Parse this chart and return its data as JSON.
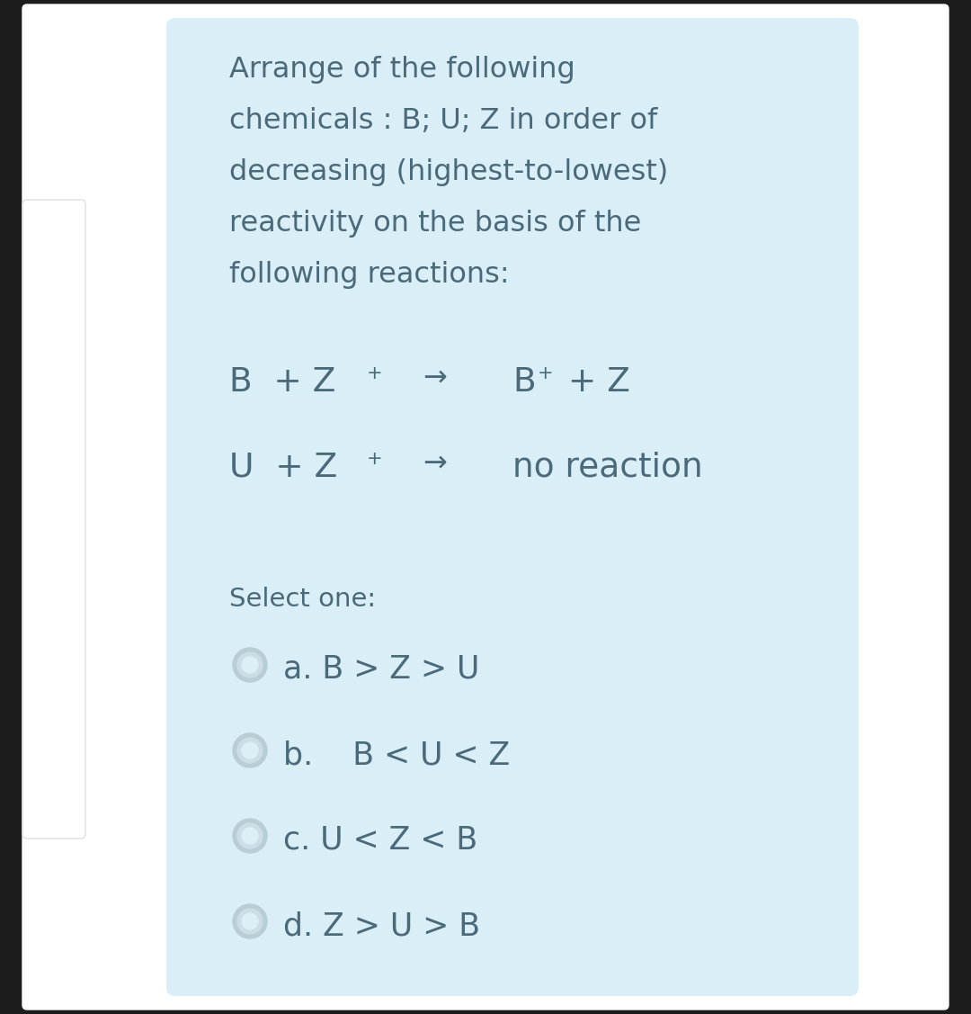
{
  "bg_color": "#ffffff",
  "card_color": "#daeef8",
  "outer_bg": "#1c1c1c",
  "text_color": "#4a6a7a",
  "title_lines": [
    "Arrange of the following",
    "chemicals : B; U; Z in order of",
    "decreasing (highest-to-lowest)",
    "reactivity on the basis of the",
    "following reactions:"
  ],
  "select_label": "Select one:",
  "options": [
    "a. B > Z > U",
    "b.    B < U < Z",
    "c. U < Z < B",
    "d. Z > U > B"
  ],
  "radio_color_outer": "#b8cdd6",
  "radio_color_mid": "#ccdde6",
  "radio_color_inner": "#ddeef6",
  "title_fontsize": 23,
  "reaction_fontsize": 27,
  "select_fontsize": 21,
  "option_fontsize": 25
}
